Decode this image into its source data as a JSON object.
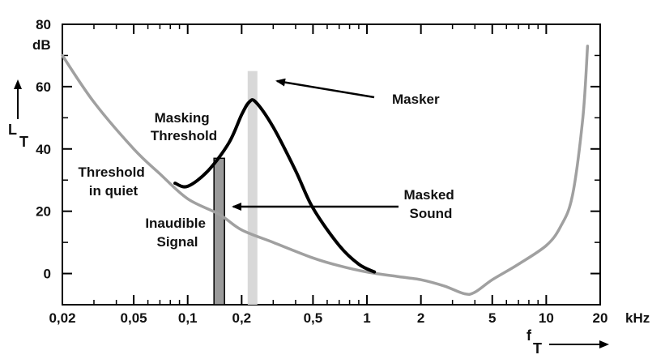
{
  "chart_data": {
    "type": "line",
    "x_scale": "log",
    "x_unit": "kHz",
    "y_unit": "dB",
    "xlim": [
      0.02,
      20
    ],
    "ylim": [
      -10,
      80
    ],
    "x_ticks": [
      {
        "value": 0.02,
        "label": "0,02"
      },
      {
        "value": 0.05,
        "label": "0,05"
      },
      {
        "value": 0.1,
        "label": "0,1"
      },
      {
        "value": 0.2,
        "label": "0,2"
      },
      {
        "value": 0.5,
        "label": "0,5"
      },
      {
        "value": 1,
        "label": "1"
      },
      {
        "value": 2,
        "label": "2"
      },
      {
        "value": 5,
        "label": "5"
      },
      {
        "value": 10,
        "label": "10"
      },
      {
        "value": 20,
        "label": "20"
      }
    ],
    "y_ticks": [
      {
        "value": 0,
        "label": "0"
      },
      {
        "value": 20,
        "label": "20"
      },
      {
        "value": 40,
        "label": "40"
      },
      {
        "value": 60,
        "label": "60"
      },
      {
        "value": 80,
        "label": "80"
      }
    ],
    "y_axis_label": "L",
    "y_axis_subscript": "T",
    "x_axis_label": "f",
    "x_axis_subscript": "T",
    "series": [
      {
        "name": "Threshold in quiet",
        "color": "#a0a0a0",
        "points": [
          [
            0.02,
            70
          ],
          [
            0.03,
            55
          ],
          [
            0.05,
            40
          ],
          [
            0.07,
            32
          ],
          [
            0.1,
            24
          ],
          [
            0.15,
            19
          ],
          [
            0.2,
            14
          ],
          [
            0.3,
            10
          ],
          [
            0.5,
            5
          ],
          [
            0.7,
            2.5
          ],
          [
            1,
            0.5
          ],
          [
            1.5,
            -1
          ],
          [
            2,
            -2
          ],
          [
            2.7,
            -4
          ],
          [
            3.5,
            -6.5
          ],
          [
            4,
            -6
          ],
          [
            5,
            -2
          ],
          [
            7,
            3
          ],
          [
            10,
            9
          ],
          [
            12,
            15
          ],
          [
            14,
            25
          ],
          [
            16,
            50
          ],
          [
            17,
            73
          ]
        ]
      },
      {
        "name": "Masking Threshold",
        "color": "#000000",
        "points": [
          [
            0.085,
            29
          ],
          [
            0.1,
            28
          ],
          [
            0.13,
            33
          ],
          [
            0.17,
            42
          ],
          [
            0.2,
            51
          ],
          [
            0.22,
            55
          ],
          [
            0.24,
            55
          ],
          [
            0.3,
            47
          ],
          [
            0.4,
            33
          ],
          [
            0.5,
            21
          ],
          [
            0.7,
            9
          ],
          [
            0.9,
            3
          ],
          [
            1.1,
            0.5
          ]
        ]
      }
    ],
    "bars": [
      {
        "name": "Masker",
        "x": 0.23,
        "value": 65,
        "color": "#d8d8d8"
      },
      {
        "name": "Masked Sound",
        "x": 0.15,
        "value": 37,
        "color": "#9a9a9a"
      }
    ],
    "annotations": {
      "masker": "Masker",
      "masking_threshold": [
        "Masking",
        "Threshold"
      ],
      "threshold_quiet": [
        "Threshold",
        "in quiet"
      ],
      "masked_sound": [
        "Masked",
        "Sound"
      ],
      "inaudible_signal": [
        "Inaudible",
        "Signal"
      ]
    }
  }
}
